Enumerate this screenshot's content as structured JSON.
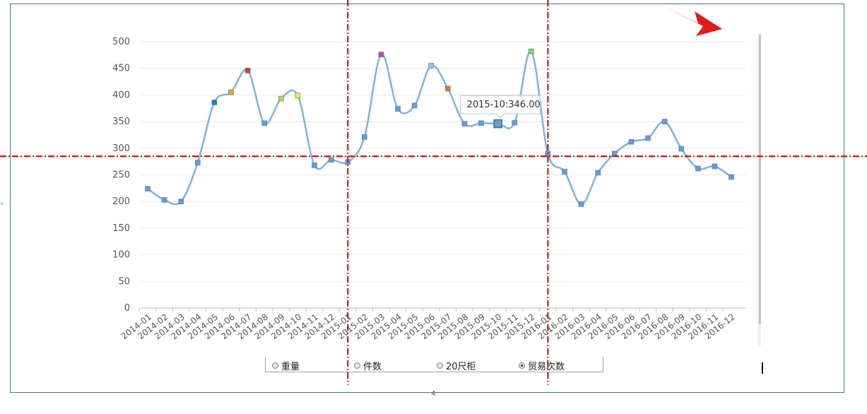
{
  "chart_data": {
    "type": "line",
    "categories": [
      "2014-01",
      "2014-02",
      "2014-03",
      "2014-04",
      "2014-05",
      "2014-06",
      "2014-07",
      "2014-08",
      "2014-09",
      "2014-10",
      "2014-11",
      "2014-12",
      "2015-01",
      "2015-02",
      "2015-03",
      "2015-04",
      "2015-05",
      "2015-06",
      "2015-07",
      "2015-08",
      "2015-09",
      "2015-10",
      "2015-11",
      "2015-12",
      "2016-01",
      "2016-02",
      "2016-03",
      "2016-04",
      "2016-05",
      "2016-06",
      "2016-07",
      "2016-08",
      "2016-09",
      "2016-10",
      "2016-11",
      "2016-12"
    ],
    "series": [
      {
        "name": "贸易次数",
        "values": [
          224,
          203,
          200,
          273,
          386,
          405,
          446,
          347,
          393,
          399,
          268,
          278,
          274,
          321,
          476,
          374,
          380,
          455,
          412,
          346,
          347,
          346,
          348,
          482,
          290,
          256,
          195,
          254,
          290,
          312,
          319,
          350,
          299,
          262,
          266,
          246
        ],
        "marker_colors": [
          "#6b9bd1",
          "#6b9bd1",
          "#6b9bd1",
          "#6b9bd1",
          "#2a7fb8",
          "#f29b2c",
          "#e03a2b",
          "#6b9bd1",
          "#b7d64a",
          "#f2ee2a",
          "#6b9bd1",
          "#6b9bd1",
          "#6b9bd1",
          "#6b9bd1",
          "#d6409f",
          "#6b9bd1",
          "#6b9bd1",
          "#9cc0e6",
          "#e0762b",
          "#6b9bd1",
          "#6b9bd1",
          "#6b9bd1",
          "#6b9bd1",
          "#6ee04a",
          "#6b9bd1",
          "#6b9bd1",
          "#6b9bd1",
          "#6b9bd1",
          "#6b9bd1",
          "#6b9bd1",
          "#6b9bd1",
          "#6b9bd1",
          "#6b9bd1",
          "#6b9bd1",
          "#6b9bd1",
          "#6b9bd1"
        ]
      }
    ],
    "ylim": [
      0,
      500
    ],
    "yticks": [
      0,
      50,
      100,
      150,
      200,
      250,
      300,
      350,
      400,
      450,
      500
    ],
    "grid": true,
    "line_color": "#7fb2e0",
    "tooltip": {
      "text": "2015-10:346.00",
      "category": "2015-10"
    }
  },
  "legend": {
    "items": [
      {
        "label": "重量",
        "checked": false
      },
      {
        "label": "件数",
        "checked": false
      },
      {
        "label": "20尺柜",
        "checked": false
      },
      {
        "label": "贸易次数",
        "checked": true
      }
    ]
  },
  "annotations": {
    "crosshair_color": "#d40000",
    "arrow_color": "#e31b1b",
    "crosshair_x_categories": [
      "2015-01",
      "2016-01"
    ],
    "crosshair_y_value": 285
  },
  "page_number": "4"
}
